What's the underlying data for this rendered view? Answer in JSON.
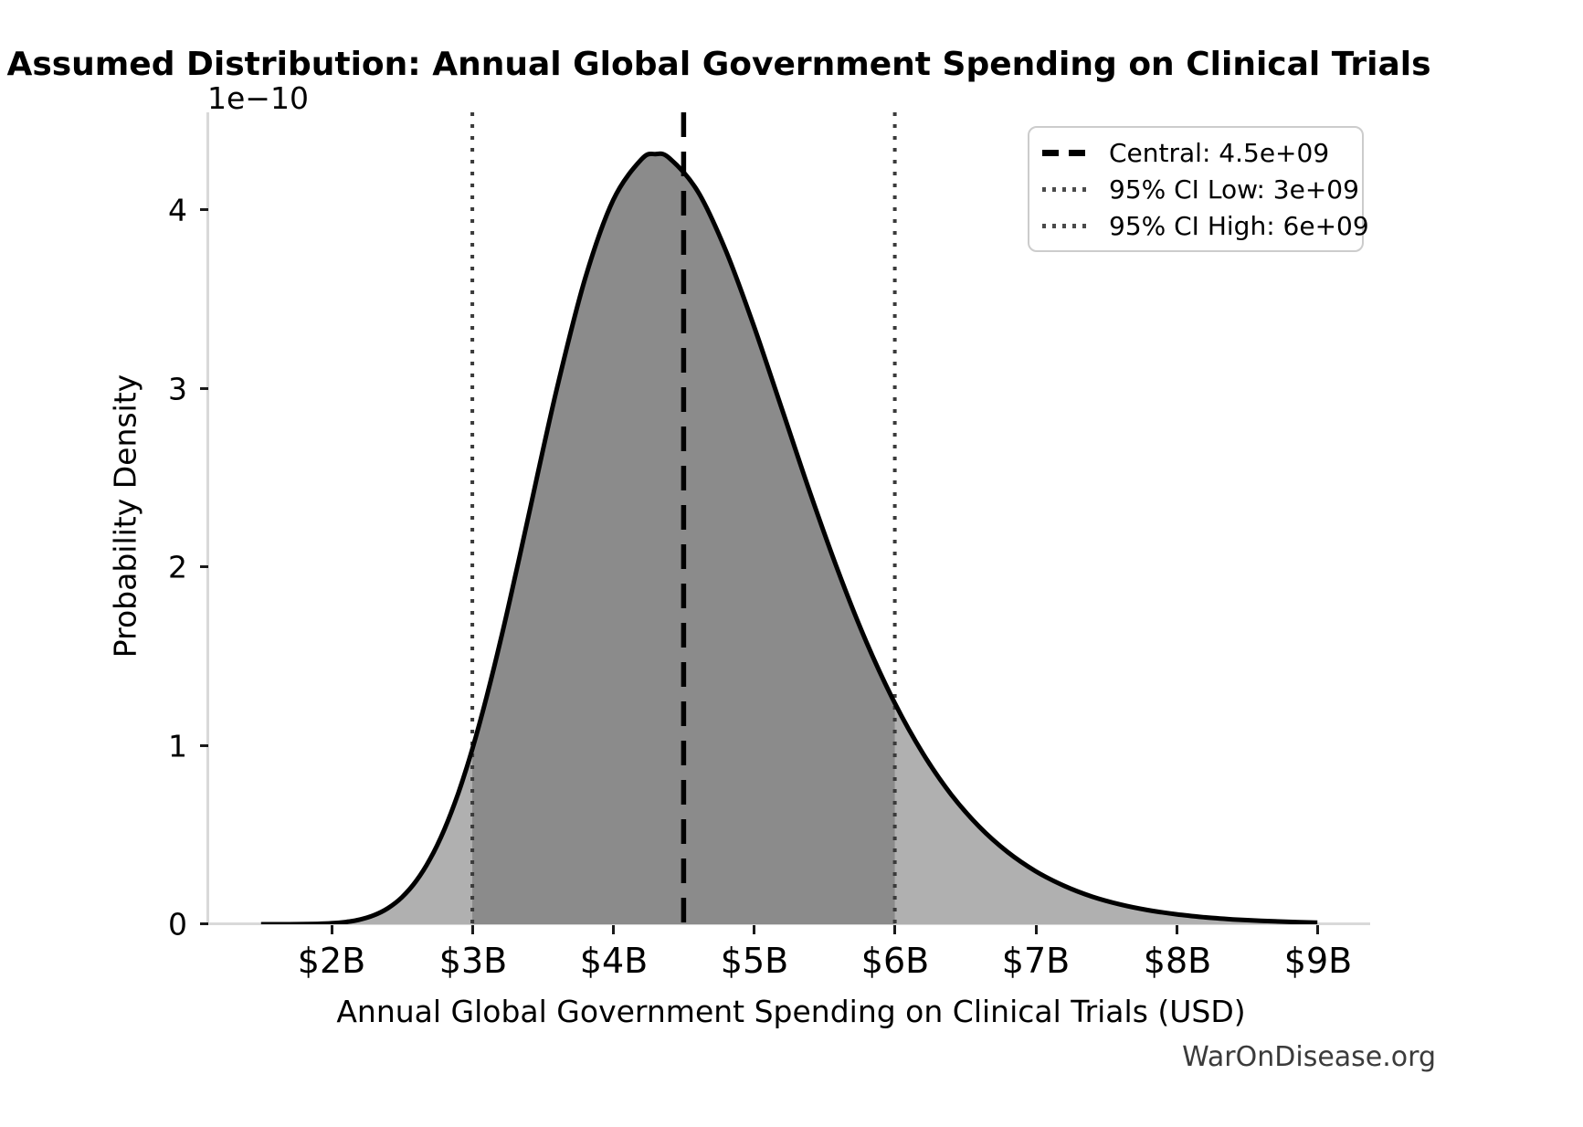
{
  "title": "Assumed Distribution: Annual Global Government Spending on Clinical Trials",
  "watermark": "WarOnDisease.org",
  "axes": {
    "xlabel": "Annual Global Government Spending on Clinical Trials (USD)",
    "ylabel": "Probability Density",
    "offset_text": "1e−10",
    "x_ticks": [
      "$2B",
      "$3B",
      "$4B",
      "$5B",
      "$6B",
      "$7B",
      "$8B",
      "$9B"
    ],
    "y_ticks": [
      "0",
      "1",
      "2",
      "3",
      "4"
    ]
  },
  "legend": {
    "items": [
      {
        "label": "Central: 4.5e+09",
        "style": "dashed",
        "color": "#000000"
      },
      {
        "label": "95% CI Low: 3e+09",
        "style": "dotted",
        "color": "#4a4a4a"
      },
      {
        "label": "95% CI High: 6e+09",
        "style": "dotted",
        "color": "#4a4a4a"
      }
    ]
  },
  "colors": {
    "curve": "#000000",
    "fill_light": "#b0b0b0",
    "fill_ci": "#8b8b8b",
    "central_line": "#000000",
    "ci_line": "#3a3a3a",
    "spine": "#d9d9d9",
    "tick": "#1a1a1a",
    "watermark": "#3b3b3b",
    "legend_border": "#cccccc"
  },
  "chart_data": {
    "type": "area",
    "title": "Assumed Distribution: Annual Global Government Spending on Clinical Trials",
    "xlabel": "Annual Global Government Spending on Clinical Trials (USD)",
    "ylabel": "Probability Density",
    "y_offset_factor": "1e−10",
    "grid": false,
    "legend_position": "upper right",
    "xlim_usd": [
      1125000000,
      9375000000
    ],
    "ylim_density_per_usd": [
      0,
      4.55e-10
    ],
    "x_tick_values_usd": [
      2000000000,
      3000000000,
      4000000000,
      5000000000,
      6000000000,
      7000000000,
      8000000000,
      9000000000
    ],
    "y_tick_values_1e10": [
      0,
      1,
      2,
      3,
      4
    ],
    "central_usd": 4500000000,
    "ci_low_usd": 3000000000,
    "ci_high_usd": 6000000000,
    "shaded_ci_range_usd": [
      3000000000,
      6000000000
    ],
    "peak": {
      "x_usd": 4300000000,
      "density_1e10_per_usd": 4.32
    },
    "curve": {
      "x_billions_usd": [
        1.5,
        1.7,
        1.9,
        2.0,
        2.1,
        2.2,
        2.3,
        2.4,
        2.5,
        2.6,
        2.7,
        2.8,
        2.9,
        3.0,
        3.1,
        3.2,
        3.3,
        3.4,
        3.6,
        3.8,
        4.0,
        4.2,
        4.3,
        4.4,
        4.6,
        4.8,
        5.0,
        5.2,
        5.4,
        5.6,
        5.8,
        6.0,
        6.2,
        6.4,
        6.6,
        6.8,
        7.0,
        7.2,
        7.4,
        7.6,
        7.8,
        8.0,
        8.2,
        8.4,
        8.6,
        8.8,
        9.0
      ],
      "density_1e10_per_usd": [
        0.0,
        0.0002,
        0.0022,
        0.0055,
        0.0125,
        0.0259,
        0.05,
        0.0897,
        0.1512,
        0.241,
        0.3652,
        0.529,
        0.734,
        0.982,
        1.27,
        1.589,
        1.934,
        2.293,
        3.001,
        3.616,
        4.058,
        4.286,
        4.316,
        4.293,
        4.108,
        3.775,
        3.35,
        2.883,
        2.414,
        1.973,
        1.578,
        1.239,
        0.956,
        0.727,
        0.546,
        0.405,
        0.297,
        0.216,
        0.155,
        0.111,
        0.0788,
        0.0557,
        0.0391,
        0.0273,
        0.019,
        0.0132,
        0.0091
      ]
    }
  }
}
